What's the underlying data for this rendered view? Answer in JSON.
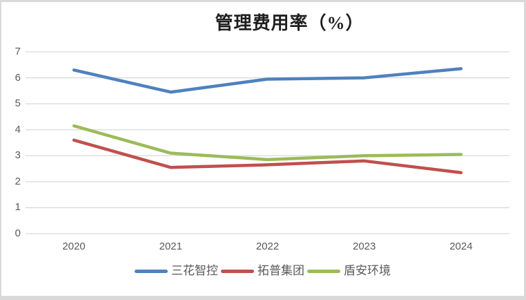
{
  "chart_data": {
    "type": "line",
    "title": "管理费用率（%）",
    "categories": [
      "2020",
      "2021",
      "2022",
      "2023",
      "2024"
    ],
    "series": [
      {
        "name": "三花智控",
        "color": "#4F81BD",
        "values": [
          6.3,
          5.45,
          5.95,
          6.0,
          6.35
        ]
      },
      {
        "name": "拓普集团",
        "color": "#C0504D",
        "values": [
          3.6,
          2.55,
          2.65,
          2.8,
          2.35
        ]
      },
      {
        "name": "盾安环境",
        "color": "#9BBB59",
        "values": [
          4.15,
          3.1,
          2.85,
          3.0,
          3.05
        ]
      }
    ],
    "xlabel": "",
    "ylabel": "",
    "ylim": [
      0,
      7
    ],
    "yticks": [
      0,
      1,
      2,
      3,
      4,
      5,
      6,
      7
    ],
    "grid": true,
    "legend_position": "bottom"
  },
  "styles": {
    "background": "#FFFFFF",
    "frame_border_color": "#D9D9D9",
    "gridline_color": "#D9D9D9",
    "axis_text_color": "#595959",
    "title_color": "#1F1F1F",
    "line_width": 4.5
  }
}
